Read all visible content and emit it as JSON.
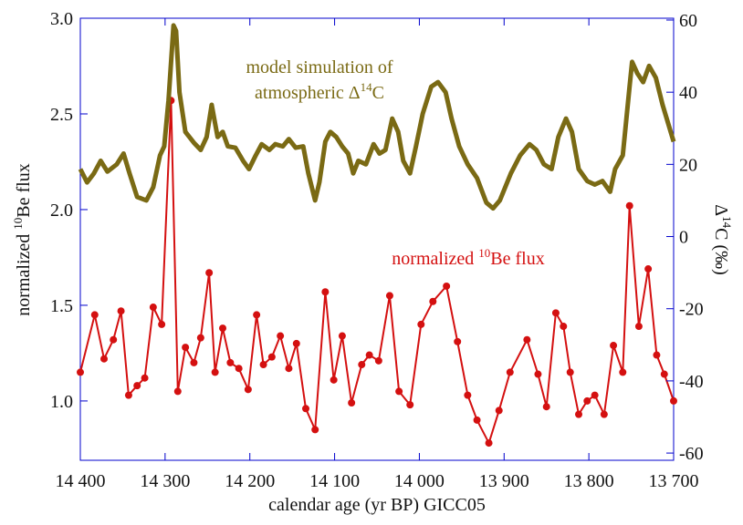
{
  "chart_data": {
    "type": "line",
    "xlabel": "calendar age (yr BP) GICC05",
    "ylabel": [
      "normalized ",
      "10",
      "Be flux"
    ],
    "y2label": [
      "Δ",
      "14",
      "C (‰)"
    ],
    "annotations": [
      {
        "text": [
          "model simulation of"
        ],
        "color": "#7a6a14"
      },
      {
        "text": [
          "atmospheric Δ",
          "14",
          "C"
        ],
        "color": "#7a6a14"
      },
      {
        "text": [
          "normalized ",
          "10",
          "Be flux"
        ],
        "color": "#d41010"
      }
    ],
    "xlim": [
      14400,
      13700
    ],
    "xticks": [
      {
        "value": 14400,
        "label": "14 400"
      },
      {
        "value": 14300,
        "label": "14 300"
      },
      {
        "value": 14200,
        "label": "14 200"
      },
      {
        "value": 14100,
        "label": "14 100"
      },
      {
        "value": 14000,
        "label": "14 000"
      },
      {
        "value": 13900,
        "label": "13 900"
      },
      {
        "value": 13800,
        "label": "13 800"
      },
      {
        "value": 13700,
        "label": "13 700"
      }
    ],
    "ylim": [
      0.69,
      3.0
    ],
    "yticks": [
      {
        "value": 1,
        "label": "1.0"
      },
      1.5,
      {
        "value": 2,
        "label": "2.0"
      },
      2.5,
      {
        "value": 3,
        "label": "3.0"
      }
    ],
    "y2lim": [
      -62,
      60.5
    ],
    "y2ticks": [
      -60,
      -40,
      -20,
      0,
      20,
      40,
      60
    ],
    "series": [
      {
        "color": "#d41010",
        "markers": true,
        "x": [
          14400,
          14383,
          14372,
          14361,
          14352,
          14343,
          14333,
          14324,
          14314,
          14304,
          14293,
          14285,
          14276,
          14266,
          14258,
          14248,
          14241,
          14232,
          14223,
          14213,
          14202,
          14192,
          14184,
          14174,
          14164,
          14154,
          14145,
          14134,
          14123,
          14111,
          14101,
          14091,
          14080,
          14068,
          14059,
          14048,
          14035,
          14024,
          14011,
          13998,
          13984,
          13968,
          13955,
          13943,
          13932,
          13918,
          13906,
          13893,
          13873,
          13860,
          13850,
          13839,
          13830,
          13822,
          13812,
          13802,
          13793,
          13782,
          13771,
          13760,
          13752,
          13741,
          13730,
          13720,
          13711,
          13700
        ],
        "values": [
          1.15,
          1.45,
          1.22,
          1.32,
          1.47,
          1.03,
          1.08,
          1.12,
          1.49,
          1.4,
          2.57,
          1.05,
          1.28,
          1.2,
          1.33,
          1.67,
          1.15,
          1.38,
          1.2,
          1.17,
          1.06,
          1.45,
          1.19,
          1.23,
          1.34,
          1.17,
          1.3,
          0.96,
          0.85,
          1.57,
          1.11,
          1.34,
          0.99,
          1.19,
          1.24,
          1.21,
          1.55,
          1.05,
          0.98,
          1.4,
          1.52,
          1.6,
          1.31,
          1.03,
          0.9,
          0.78,
          0.95,
          1.15,
          1.32,
          1.14,
          0.97,
          1.46,
          1.39,
          1.15,
          0.93,
          1.0,
          1.03,
          0.93,
          1.29,
          1.15,
          2.02,
          1.39,
          1.69,
          1.24,
          1.14,
          1.0
        ]
      },
      {
        "color": "#7a6a14",
        "axis": "y2",
        "markers": false,
        "x": [
          14400,
          14392,
          14384,
          14376,
          14368,
          14357,
          14349,
          14342,
          14333,
          14322,
          14314,
          14306,
          14301,
          14296,
          14290,
          14287,
          14283,
          14276,
          14266,
          14258,
          14251,
          14245,
          14238,
          14232,
          14226,
          14217,
          14208,
          14201,
          14193,
          14186,
          14177,
          14170,
          14161,
          14154,
          14146,
          14137,
          14131,
          14123,
          14118,
          14111,
          14105,
          14098,
          14091,
          14084,
          14078,
          14072,
          14063,
          14054,
          14047,
          14040,
          14032,
          14025,
          14019,
          14011,
          14004,
          13996,
          13986,
          13978,
          13969,
          13962,
          13953,
          13943,
          13932,
          13921,
          13913,
          13905,
          13892,
          13881,
          13870,
          13862,
          13853,
          13844,
          13836,
          13827,
          13820,
          13812,
          13802,
          13793,
          13784,
          13775,
          13769,
          13760,
          13752,
          13749,
          13743,
          13736,
          13729,
          13721,
          13713,
          13700
        ],
        "values": [
          18.7,
          15,
          17.5,
          21,
          18,
          20,
          23,
          17.5,
          11,
          10,
          13.7,
          22.5,
          25,
          37.7,
          58.5,
          57,
          40,
          29,
          26,
          24,
          27.6,
          36.5,
          27.6,
          29,
          25,
          24.6,
          21,
          18.7,
          22.5,
          25.6,
          24,
          25.6,
          25,
          27,
          24.6,
          25,
          17.5,
          10,
          15,
          26.3,
          29,
          27.6,
          25,
          23,
          17.5,
          21,
          20,
          25.6,
          23,
          24,
          32.7,
          29,
          21,
          17.5,
          25,
          34,
          41.5,
          42.8,
          40,
          32.7,
          25,
          20,
          16.2,
          9.4,
          7.8,
          10,
          17.5,
          22.5,
          25.6,
          24,
          20,
          18.7,
          27.6,
          32.7,
          29,
          18.7,
          15.4,
          14.4,
          15.4,
          12.4,
          18.7,
          22.5,
          41.5,
          48.4,
          45.3,
          42.8,
          47.3,
          44,
          36.5,
          26.3
        ]
      }
    ]
  }
}
